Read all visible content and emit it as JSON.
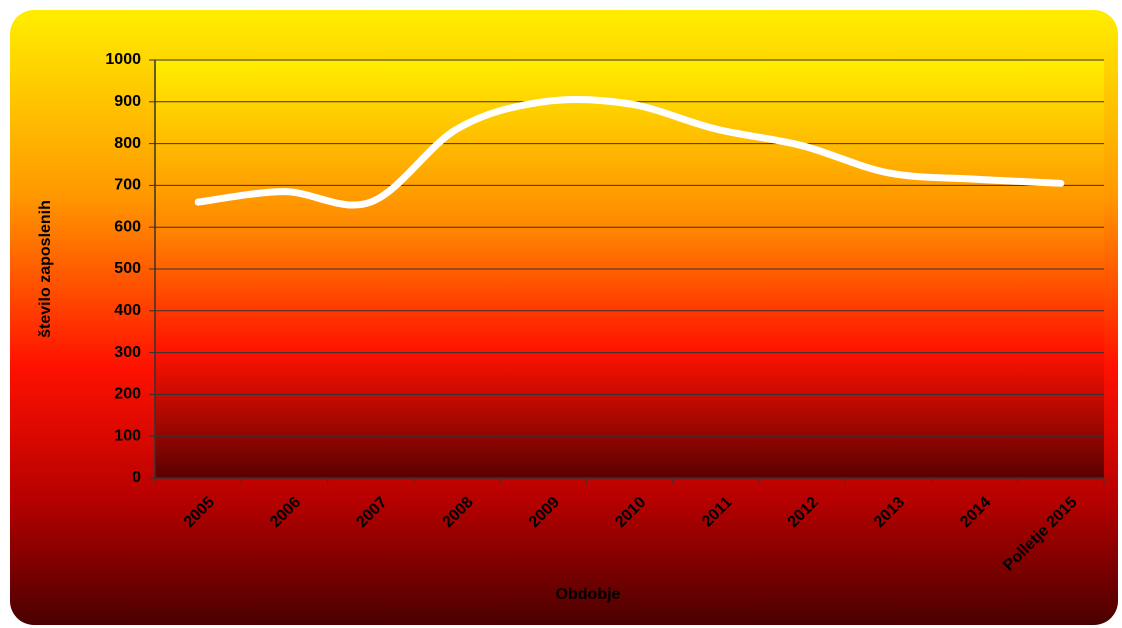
{
  "chart_data": {
    "type": "line",
    "x_label": "Obdobje",
    "y_label": "število zaposlenih",
    "categories": [
      "2005",
      "2006",
      "2007",
      "2008",
      "2009",
      "2010",
      "2011",
      "2012",
      "2013",
      "2014",
      "Polletje 2015"
    ],
    "values": [
      660,
      685,
      660,
      835,
      900,
      895,
      835,
      795,
      730,
      715,
      705
    ],
    "color": "#ffffff",
    "smooth": true,
    "ylim": [
      0,
      1000
    ],
    "yticks": [
      0,
      100,
      200,
      300,
      400,
      500,
      600,
      700,
      800,
      900,
      1000
    ],
    "grid": true
  }
}
